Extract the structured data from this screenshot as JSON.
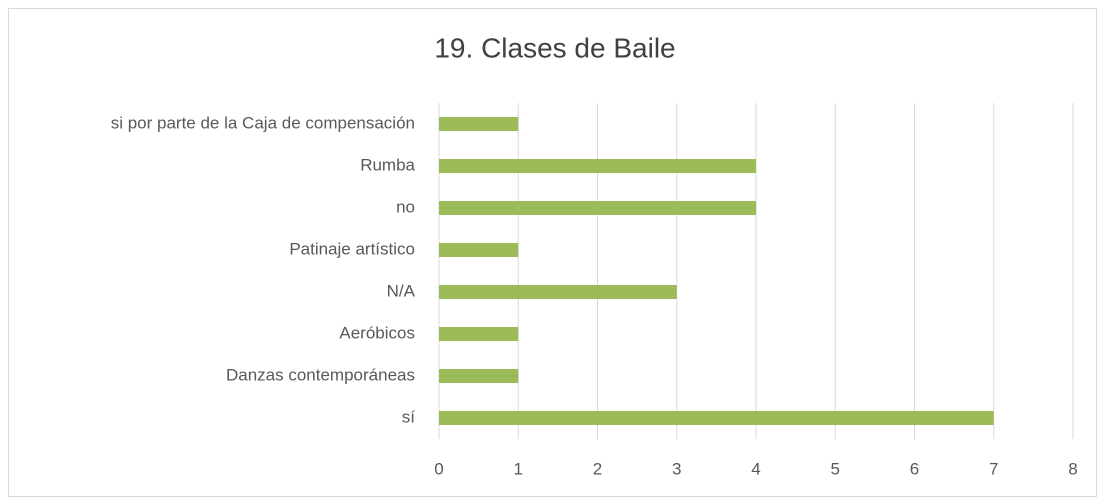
{
  "chart_data": {
    "type": "hbar",
    "title": "19. Clases de Baile",
    "categories": [
      "si por parte de la Caja de compensación",
      "Rumba",
      "no",
      "Patinaje artístico",
      "N/A",
      "Aeróbicos",
      "Danzas contemporáneas",
      "sí"
    ],
    "values": [
      1,
      4,
      4,
      1,
      3,
      1,
      1,
      7
    ],
    "color": "#9bbb59",
    "xlim": [
      0,
      8
    ],
    "xticks": [
      0,
      1,
      2,
      3,
      4,
      5,
      6,
      7,
      8
    ],
    "grid": true
  }
}
